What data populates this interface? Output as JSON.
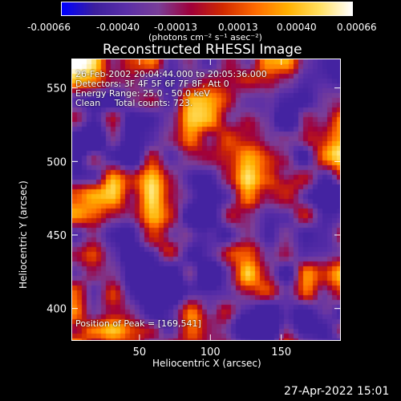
{
  "chart_data": {
    "type": "heatmap",
    "title": "Reconstructed RHESSI Image",
    "xlabel": "Heliocentric X (arcsec)",
    "ylabel": "Heliocentric Y (arcsec)",
    "xlim": [
      2,
      192
    ],
    "ylim": [
      378,
      570
    ],
    "xticks": [
      50,
      100,
      150
    ],
    "yticks": [
      400,
      450,
      500,
      550
    ],
    "colorbar": {
      "ticks": [
        "-0.00066",
        "-0.00040",
        "-0.00013",
        "0.00013",
        "0.00040",
        "0.00066"
      ],
      "min": -0.00066,
      "max": 0.00066,
      "units_label": "(photons cm⁻² s⁻¹ asec⁻²)"
    },
    "annotations": {
      "time_range": "26-Feb-2002 20:04:44.000 to 20:05:36.000",
      "detectors": "Detectors: 3F 4F 5F 6F 7F 8F, Att 0",
      "energy": "Energy Range: 25.0 - 50.0 keV",
      "method": "Clean     Total counts: 723.",
      "peak": "Position of Peak = [169,541]"
    },
    "peak_position": [
      169,
      541
    ],
    "colormap": [
      "#0000ff",
      "#3c1f9e",
      "#5b2fa8",
      "#7a3e98",
      "#a0003a",
      "#d12a00",
      "#ff6a00",
      "#ffb000",
      "#ffe060",
      "#ffffff"
    ]
  },
  "footer": {
    "timestamp": "27-Apr-2022 15:01"
  }
}
